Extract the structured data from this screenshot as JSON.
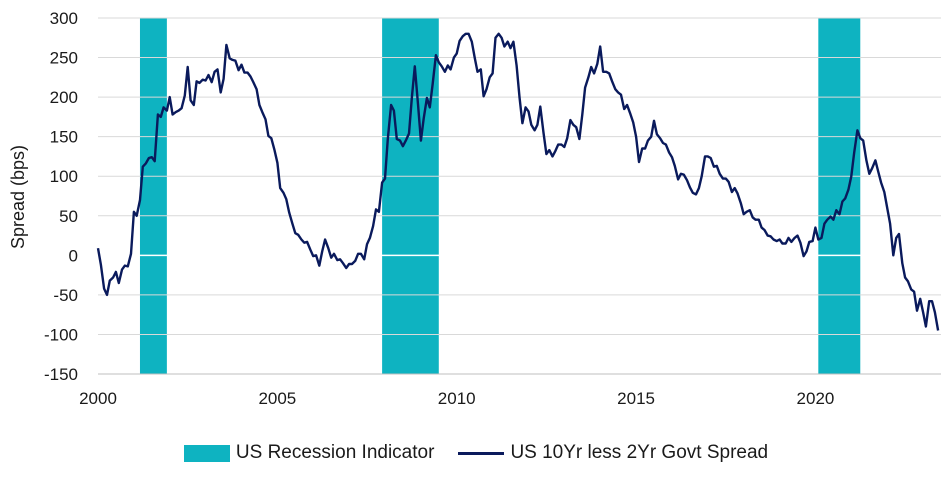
{
  "chart_data": {
    "type": "line",
    "title": "",
    "xlabel": "",
    "ylabel": "Spread (bps)",
    "xlim": [
      2000.0,
      2023.5
    ],
    "ylim": [
      -150,
      300
    ],
    "y_ticks": [
      300,
      250,
      200,
      150,
      100,
      50,
      0,
      -50,
      -100,
      -150
    ],
    "x_ticks": [
      2000,
      2005,
      2010,
      2015,
      2020
    ],
    "grid": "horizontal",
    "legend_position": "bottom",
    "colors": {
      "recession": "#0EB3C1",
      "spread": "#0A1A5C",
      "grid": "#d9d9d9",
      "zero": "#ffffff"
    },
    "recessions": [
      {
        "start": 2001.17,
        "end": 2001.92
      },
      {
        "start": 2007.92,
        "end": 2009.5
      },
      {
        "start": 2020.08,
        "end": 2021.25
      }
    ],
    "series": [
      {
        "name": "US 10Yr less 2Yr Govt Spread",
        "x": [
          2000.0,
          2000.08,
          2000.17,
          2000.25,
          2000.33,
          2000.42,
          2000.5,
          2000.58,
          2000.67,
          2000.75,
          2000.83,
          2000.92,
          2001.0,
          2001.08,
          2001.17,
          2001.25,
          2001.33,
          2001.42,
          2001.5,
          2001.58,
          2001.67,
          2001.75,
          2001.83,
          2001.92,
          2002.0,
          2002.08,
          2002.17,
          2002.25,
          2002.33,
          2002.42,
          2002.5,
          2002.58,
          2002.67,
          2002.75,
          2002.83,
          2002.92,
          2003.0,
          2003.08,
          2003.17,
          2003.25,
          2003.33,
          2003.42,
          2003.5,
          2003.58,
          2003.67,
          2003.75,
          2003.83,
          2003.92,
          2004.0,
          2004.08,
          2004.17,
          2004.25,
          2004.33,
          2004.42,
          2004.5,
          2004.58,
          2004.67,
          2004.75,
          2004.83,
          2004.92,
          2005.0,
          2005.08,
          2005.17,
          2005.25,
          2005.33,
          2005.42,
          2005.5,
          2005.58,
          2005.67,
          2005.75,
          2005.83,
          2005.92,
          2006.0,
          2006.08,
          2006.17,
          2006.25,
          2006.33,
          2006.42,
          2006.5,
          2006.58,
          2006.67,
          2006.75,
          2006.83,
          2006.92,
          2007.0,
          2007.08,
          2007.17,
          2007.25,
          2007.33,
          2007.42,
          2007.5,
          2007.58,
          2007.67,
          2007.75,
          2007.83,
          2007.92,
          2008.0,
          2008.08,
          2008.17,
          2008.25,
          2008.33,
          2008.42,
          2008.5,
          2008.58,
          2008.67,
          2008.75,
          2008.83,
          2008.92,
          2009.0,
          2009.08,
          2009.17,
          2009.25,
          2009.33,
          2009.42,
          2009.5,
          2009.58,
          2009.67,
          2009.75,
          2009.83,
          2009.92,
          2010.0,
          2010.08,
          2010.17,
          2010.25,
          2010.33,
          2010.42,
          2010.5,
          2010.58,
          2010.67,
          2010.75,
          2010.83,
          2010.92,
          2011.0,
          2011.08,
          2011.17,
          2011.25,
          2011.33,
          2011.42,
          2011.5,
          2011.58,
          2011.67,
          2011.75,
          2011.83,
          2011.92,
          2012.0,
          2012.08,
          2012.17,
          2012.25,
          2012.33,
          2012.42,
          2012.5,
          2012.58,
          2012.67,
          2012.75,
          2012.83,
          2012.92,
          2013.0,
          2013.08,
          2013.17,
          2013.25,
          2013.33,
          2013.42,
          2013.5,
          2013.58,
          2013.67,
          2013.75,
          2013.83,
          2013.92,
          2014.0,
          2014.08,
          2014.17,
          2014.25,
          2014.33,
          2014.42,
          2014.5,
          2014.58,
          2014.67,
          2014.75,
          2014.83,
          2014.92,
          2015.0,
          2015.08,
          2015.17,
          2015.25,
          2015.33,
          2015.42,
          2015.5,
          2015.58,
          2015.67,
          2015.75,
          2015.83,
          2015.92,
          2016.0,
          2016.08,
          2016.17,
          2016.25,
          2016.33,
          2016.42,
          2016.5,
          2016.58,
          2016.67,
          2016.75,
          2016.83,
          2016.92,
          2017.0,
          2017.08,
          2017.17,
          2017.25,
          2017.33,
          2017.42,
          2017.5,
          2017.58,
          2017.67,
          2017.75,
          2017.83,
          2017.92,
          2018.0,
          2018.08,
          2018.17,
          2018.25,
          2018.33,
          2018.42,
          2018.5,
          2018.58,
          2018.67,
          2018.75,
          2018.83,
          2018.92,
          2019.0,
          2019.08,
          2019.17,
          2019.25,
          2019.33,
          2019.42,
          2019.5,
          2019.58,
          2019.67,
          2019.75,
          2019.83,
          2019.92,
          2020.0,
          2020.08,
          2020.17,
          2020.25,
          2020.33,
          2020.42,
          2020.5,
          2020.58,
          2020.67,
          2020.75,
          2020.83,
          2020.92,
          2021.0,
          2021.08,
          2021.17,
          2021.25,
          2021.33,
          2021.42,
          2021.5,
          2021.58,
          2021.67,
          2021.75,
          2021.83,
          2021.92,
          2022.0,
          2022.08,
          2022.17,
          2022.25,
          2022.33,
          2022.42,
          2022.5,
          2022.58,
          2022.67,
          2022.75,
          2022.83,
          2022.92,
          2023.0,
          2023.08,
          2023.17,
          2023.25,
          2023.33,
          2023.42
        ],
        "values": [
          9,
          -12,
          -42,
          -50,
          -32,
          -28,
          -21,
          -35,
          -18,
          -13,
          -14,
          2,
          55,
          50,
          70,
          112,
          116,
          123,
          124,
          119,
          178,
          175,
          187,
          183,
          200,
          178,
          181,
          183,
          186,
          202,
          238,
          196,
          190,
          220,
          218,
          222,
          221,
          228,
          219,
          232,
          235,
          206,
          223,
          266,
          249,
          247,
          246,
          234,
          241,
          231,
          231,
          226,
          219,
          210,
          190,
          181,
          172,
          151,
          148,
          133,
          117,
          85,
          79,
          71,
          54,
          40,
          28,
          26,
          20,
          16,
          17,
          7,
          -1,
          0,
          -13,
          5,
          20,
          9,
          -3,
          2,
          -6,
          -5,
          -10,
          -16,
          -11,
          -11,
          -7,
          2,
          2,
          -5,
          14,
          22,
          37,
          58,
          55,
          92,
          97,
          147,
          190,
          183,
          147,
          145,
          138,
          145,
          154,
          200,
          239,
          191,
          145,
          173,
          199,
          187,
          217,
          253,
          244,
          239,
          232,
          240,
          235,
          250,
          255,
          271,
          277,
          280,
          280,
          270,
          250,
          232,
          235,
          201,
          210,
          225,
          230,
          275,
          280,
          275,
          264,
          270,
          262,
          270,
          240,
          200,
          167,
          187,
          182,
          165,
          158,
          165,
          188,
          155,
          128,
          133,
          125,
          132,
          140,
          140,
          137,
          148,
          171,
          165,
          162,
          147,
          178,
          212,
          225,
          238,
          230,
          242,
          264,
          232,
          232,
          230,
          220,
          210,
          206,
          203,
          185,
          190,
          180,
          168,
          150,
          118,
          135,
          135,
          145,
          150,
          170,
          153,
          148,
          142,
          140,
          130,
          124,
          113,
          96,
          103,
          102,
          95,
          86,
          79,
          77,
          85,
          100,
          125,
          125,
          123,
          112,
          113,
          103,
          97,
          97,
          93,
          80,
          85,
          78,
          66,
          52,
          55,
          57,
          48,
          45,
          45,
          35,
          32,
          25,
          24,
          20,
          18,
          20,
          15,
          15,
          22,
          17,
          22,
          25,
          16,
          -1,
          5,
          17,
          18,
          35,
          20,
          22,
          40,
          45,
          49,
          45,
          57,
          52,
          68,
          72,
          83,
          100,
          130,
          158,
          148,
          145,
          120,
          103,
          110,
          120,
          106,
          92,
          80,
          60,
          40,
          0,
          22,
          27,
          -10,
          -28,
          -33,
          -43,
          -46,
          -70,
          -55,
          -72,
          -90,
          -58,
          -58,
          -72,
          -95
        ]
      }
    ],
    "legend": [
      {
        "label": "US Recession Indicator",
        "kind": "box"
      },
      {
        "label": "US 10Yr less 2Yr Govt Spread",
        "kind": "line"
      }
    ]
  }
}
